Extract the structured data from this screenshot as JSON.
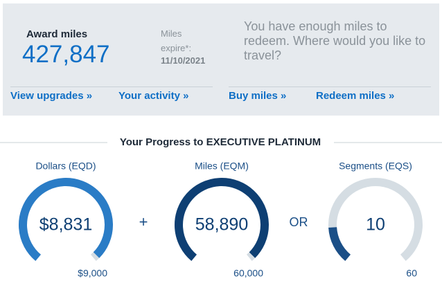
{
  "summary": {
    "award_label": "Award miles",
    "award_miles": "427,847",
    "expire_label": "Miles expire*:",
    "expire_date": "11/10/2021",
    "message": "You have enough miles to redeem. Where would you like to travel?"
  },
  "links": [
    "View upgrades »",
    "Your activity »",
    "Buy miles »",
    "Redeem miles »"
  ],
  "progress": {
    "title": "Your Progress to EXECUTIVE PLATINUM",
    "operators": [
      "+",
      "OR"
    ],
    "gauges": [
      {
        "label": "Dollars (EQD)",
        "value": {
          "value": 8831,
          "label": "$8,831"
        },
        "max": {
          "value": 9000,
          "label": "$9,000"
        },
        "color": "#2a7cc6",
        "track": "#d5dde3"
      },
      {
        "label": "Miles (EQM)",
        "value": {
          "value": 58890,
          "label": "58,890"
        },
        "max": {
          "value": 60000,
          "label": "60,000"
        },
        "color": "#0e3f73",
        "track": "#d5dde3"
      },
      {
        "label": "Segments (EQS)",
        "value": {
          "value": 10,
          "label": "10"
        },
        "max": {
          "value": 60,
          "label": "60"
        },
        "color": "#1b4f87",
        "track": "#d5dde3"
      }
    ]
  }
}
